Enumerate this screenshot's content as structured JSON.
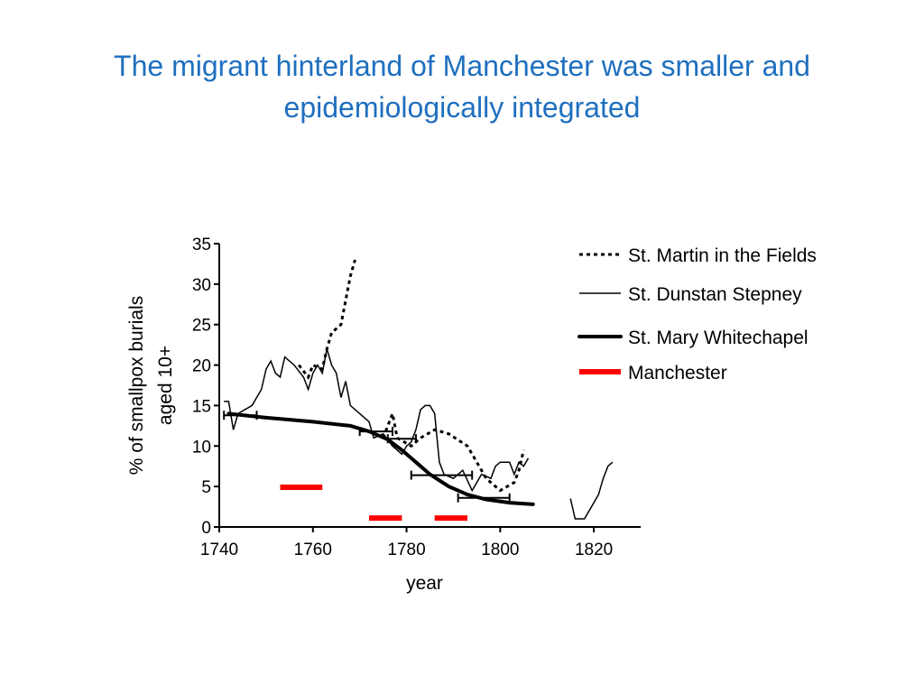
{
  "slide": {
    "title_line1": "The migrant hinterland of Manchester was smaller and",
    "title_line2": "epidemiologically integrated"
  },
  "chart_data": {
    "type": "line",
    "xlabel": "year",
    "ylabel_line1": "% of smallpox burials",
    "ylabel_line2": "aged 10+",
    "xlim": [
      1740,
      1830
    ],
    "ylim": [
      0,
      35
    ],
    "xticks": [
      1740,
      1760,
      1780,
      1800,
      1820
    ],
    "yticks": [
      0,
      5,
      10,
      15,
      20,
      25,
      30,
      35
    ],
    "legend_position": "right",
    "series": [
      {
        "name": "St. Martin in the Fields",
        "style": "dotted",
        "color": "#000000",
        "segments": [
          [
            [
              1757,
              20
            ],
            [
              1759,
              18.5
            ],
            [
              1760,
              20
            ],
            [
              1762,
              19.5
            ],
            [
              1763,
              22
            ],
            [
              1764,
              24
            ],
            [
              1766,
              25
            ],
            [
              1767,
              28
            ],
            [
              1768,
              31
            ],
            [
              1769,
              33
            ]
          ],
          [
            [
              1775,
              11
            ],
            [
              1777,
              14
            ],
            [
              1778,
              11
            ],
            [
              1781,
              10
            ],
            [
              1783,
              11
            ],
            [
              1786,
              12
            ],
            [
              1789,
              11.5
            ],
            [
              1793,
              10
            ],
            [
              1795,
              8
            ],
            [
              1797,
              6
            ],
            [
              1800,
              4.5
            ],
            [
              1803,
              5.5
            ],
            [
              1804,
              7
            ],
            [
              1805,
              9.5
            ]
          ]
        ]
      },
      {
        "name": "St. Dunstan Stepney",
        "style": "thin",
        "color": "#000000",
        "segments": [
          [
            [
              1741,
              15.5
            ],
            [
              1742,
              15.5
            ],
            [
              1743,
              12
            ],
            [
              1744,
              14
            ],
            [
              1747,
              15
            ],
            [
              1749,
              17
            ],
            [
              1750,
              19.5
            ],
            [
              1751,
              20.5
            ],
            [
              1752,
              19
            ],
            [
              1753,
              18.5
            ],
            [
              1754,
              21
            ],
            [
              1756,
              20
            ],
            [
              1758,
              18.5
            ],
            [
              1759,
              17
            ],
            [
              1760,
              19
            ],
            [
              1761,
              20
            ],
            [
              1762,
              19
            ],
            [
              1763,
              22
            ],
            [
              1764,
              20
            ],
            [
              1765,
              19
            ],
            [
              1766,
              16
            ],
            [
              1767,
              18
            ],
            [
              1768,
              15
            ],
            [
              1770,
              14
            ],
            [
              1772,
              13
            ],
            [
              1773,
              11
            ],
            [
              1775,
              11.5
            ],
            [
              1777,
              10
            ],
            [
              1779,
              9
            ],
            [
              1780,
              10
            ],
            [
              1781,
              10.5
            ],
            [
              1782,
              12
            ],
            [
              1783,
              14.5
            ],
            [
              1784,
              15
            ],
            [
              1785,
              15
            ],
            [
              1786,
              14
            ],
            [
              1787,
              8
            ],
            [
              1788,
              6.5
            ],
            [
              1790,
              6
            ],
            [
              1792,
              7
            ],
            [
              1794,
              4.5
            ],
            [
              1796,
              6.5
            ],
            [
              1798,
              6
            ],
            [
              1799,
              7.5
            ],
            [
              1800,
              8
            ],
            [
              1802,
              8
            ],
            [
              1803,
              6.5
            ],
            [
              1804,
              8
            ],
            [
              1805,
              7.5
            ],
            [
              1806,
              8.5
            ]
          ],
          [
            [
              1815,
              3.5
            ],
            [
              1816,
              1
            ],
            [
              1818,
              1
            ],
            [
              1820,
              3
            ],
            [
              1821,
              4
            ],
            [
              1822,
              6
            ],
            [
              1823,
              7.5
            ],
            [
              1824,
              8
            ]
          ]
        ]
      },
      {
        "name": "St. Mary Whitechapel",
        "style": "thick",
        "color": "#000000",
        "segments": [
          [
            [
              1742,
              14
            ],
            [
              1750,
              13.5
            ],
            [
              1760,
              13
            ],
            [
              1768,
              12.5
            ],
            [
              1772,
              11.8
            ],
            [
              1776,
              10.8
            ],
            [
              1779,
              9.5
            ],
            [
              1782,
              8
            ],
            [
              1785,
              6.5
            ],
            [
              1789,
              5
            ],
            [
              1793,
              4
            ],
            [
              1797,
              3.4
            ],
            [
              1802,
              3
            ],
            [
              1807,
              2.8
            ]
          ]
        ],
        "error_bars": [
          {
            "x1": 1741,
            "x2": 1748,
            "y": 13.8
          },
          {
            "x1": 1770,
            "x2": 1777,
            "y": 11.8
          },
          {
            "x1": 1776,
            "x2": 1782,
            "y": 10.9
          },
          {
            "x1": 1781,
            "x2": 1794,
            "y": 6.4
          },
          {
            "x1": 1791,
            "x2": 1802,
            "y": 3.6
          }
        ]
      },
      {
        "name": "Manchester",
        "style": "bar",
        "color": "#ff0000",
        "segments": [
          [
            [
              1753,
              4.9
            ],
            [
              1762,
              4.9
            ]
          ],
          [
            [
              1772,
              1.1
            ],
            [
              1779,
              1.1
            ]
          ],
          [
            [
              1786,
              1.1
            ],
            [
              1793,
              1.1
            ]
          ]
        ]
      }
    ]
  }
}
